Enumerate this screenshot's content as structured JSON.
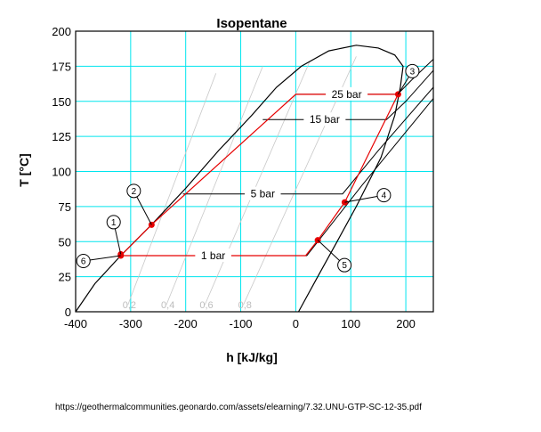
{
  "chart_data": {
    "type": "line",
    "title": "Isopentane",
    "xlabel": "h [kJ/kg]",
    "ylabel": "T [°C]",
    "xlim": [
      -400,
      250
    ],
    "ylim": [
      0,
      200
    ],
    "xticks": [
      -400,
      -300,
      -200,
      -100,
      0,
      100,
      200
    ],
    "yticks": [
      0,
      25,
      50,
      75,
      100,
      125,
      150,
      175,
      200
    ],
    "grid": true,
    "grid_color": "#00e5ee",
    "cycle_color": "#e60000",
    "saturation_dome": {
      "liquid": [
        [
          -400,
          0
        ],
        [
          -365,
          20
        ],
        [
          -318,
          40
        ],
        [
          -262,
          62
        ],
        [
          -200,
          88
        ],
        [
          -140,
          115
        ],
        [
          -80,
          140
        ],
        [
          -35,
          160
        ],
        [
          10,
          175
        ],
        [
          60,
          186
        ],
        [
          110,
          190
        ],
        [
          150,
          188
        ]
      ],
      "vapor": [
        [
          150,
          188
        ],
        [
          180,
          183
        ],
        [
          195,
          175
        ],
        [
          190,
          160
        ],
        [
          180,
          140
        ],
        [
          155,
          110
        ],
        [
          110,
          75
        ],
        [
          75,
          50
        ],
        [
          40,
          25
        ],
        [
          5,
          0
        ]
      ]
    },
    "isobars": [
      {
        "label": "25 bar",
        "points": [
          [
            0,
            155
          ],
          [
            185,
            155
          ],
          [
            210,
            165
          ],
          [
            250,
            180
          ]
        ]
      },
      {
        "label": "15 bar",
        "points": [
          [
            -60,
            137
          ],
          [
            165,
            137
          ],
          [
            200,
            150
          ],
          [
            250,
            172
          ]
        ]
      },
      {
        "label": "5 bar",
        "points": [
          [
            -205,
            84
          ],
          [
            85,
            84
          ],
          [
            150,
            115
          ],
          [
            250,
            160
          ]
        ]
      },
      {
        "label": "1 bar",
        "points": [
          [
            -320,
            40
          ],
          [
            20,
            40
          ],
          [
            120,
            90
          ],
          [
            250,
            152
          ]
        ]
      }
    ],
    "quality_lines": [
      {
        "label": "0,2",
        "points": [
          [
            -305,
            5
          ],
          [
            -145,
            170
          ]
        ]
      },
      {
        "label": "0,4",
        "points": [
          [
            -235,
            5
          ],
          [
            -60,
            175
          ]
        ]
      },
      {
        "label": "0,6",
        "points": [
          [
            -165,
            5
          ],
          [
            25,
            178
          ]
        ]
      },
      {
        "label": "0,8",
        "points": [
          [
            -95,
            5
          ],
          [
            110,
            182
          ]
        ]
      }
    ],
    "cycle": [
      {
        "label": "1",
        "h": -318,
        "T": 41
      },
      {
        "label": "2",
        "h": -262,
        "T": 62
      },
      {
        "label": "3",
        "h": 186,
        "T": 155
      },
      {
        "label": "4",
        "h": 89,
        "T": 78
      },
      {
        "label": "5",
        "h": 40,
        "T": 51
      },
      {
        "label": "6",
        "h": -318,
        "T": 40
      }
    ],
    "cycle_path": [
      [
        -318,
        40
      ],
      [
        -262,
        62
      ],
      [
        0,
        155
      ],
      [
        186,
        155
      ],
      [
        89,
        78
      ],
      [
        40,
        51
      ],
      [
        18,
        40
      ],
      [
        -318,
        40
      ]
    ]
  },
  "source": "https://geothermalcommunities.geonardo.com/assets/elearning/7.32.UNU-GTP-SC-12-35.pdf"
}
